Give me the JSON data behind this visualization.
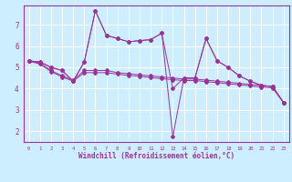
{
  "background_color": "#cceeff",
  "grid_color": "#ffffff",
  "line_color": "#993399",
  "xlabel": "Windchill (Refroidissement éolien,°C)",
  "xlim": [
    -0.5,
    23.5
  ],
  "ylim": [
    1.5,
    7.9
  ],
  "yticks": [
    2,
    3,
    4,
    5,
    6,
    7
  ],
  "xticks": [
    0,
    1,
    2,
    3,
    4,
    5,
    6,
    7,
    8,
    9,
    10,
    11,
    12,
    13,
    14,
    15,
    16,
    17,
    18,
    19,
    20,
    21,
    22,
    23
  ],
  "s1": [
    5.3,
    5.25,
    5.0,
    4.85,
    4.35,
    5.25,
    7.65,
    6.5,
    6.35,
    6.2,
    6.25,
    6.3,
    6.6,
    4.0,
    4.5,
    4.5,
    6.35,
    5.3,
    5.0,
    4.6,
    4.35,
    4.15,
    4.1,
    3.35
  ],
  "s2": [
    5.3,
    5.25,
    5.0,
    4.85,
    4.35,
    5.25,
    7.65,
    6.5,
    6.35,
    6.2,
    6.25,
    6.3,
    6.6,
    1.75,
    4.5,
    4.5,
    6.35,
    5.3,
    5.0,
    4.6,
    4.35,
    4.15,
    4.1,
    3.35
  ],
  "s3": [
    5.3,
    5.2,
    4.85,
    4.6,
    4.4,
    4.85,
    4.85,
    4.85,
    4.75,
    4.7,
    4.65,
    4.6,
    4.55,
    4.5,
    4.45,
    4.45,
    4.4,
    4.35,
    4.3,
    4.25,
    4.2,
    4.15,
    4.1,
    3.35
  ],
  "s4": [
    5.3,
    5.15,
    4.8,
    4.55,
    4.35,
    4.75,
    4.75,
    4.75,
    4.68,
    4.62,
    4.58,
    4.52,
    4.47,
    4.42,
    4.38,
    4.38,
    4.33,
    4.28,
    4.23,
    4.18,
    4.13,
    4.08,
    4.03,
    3.35
  ],
  "xlabel_fontsize": 5.5,
  "xtick_fontsize": 4.0,
  "ytick_fontsize": 5.5
}
